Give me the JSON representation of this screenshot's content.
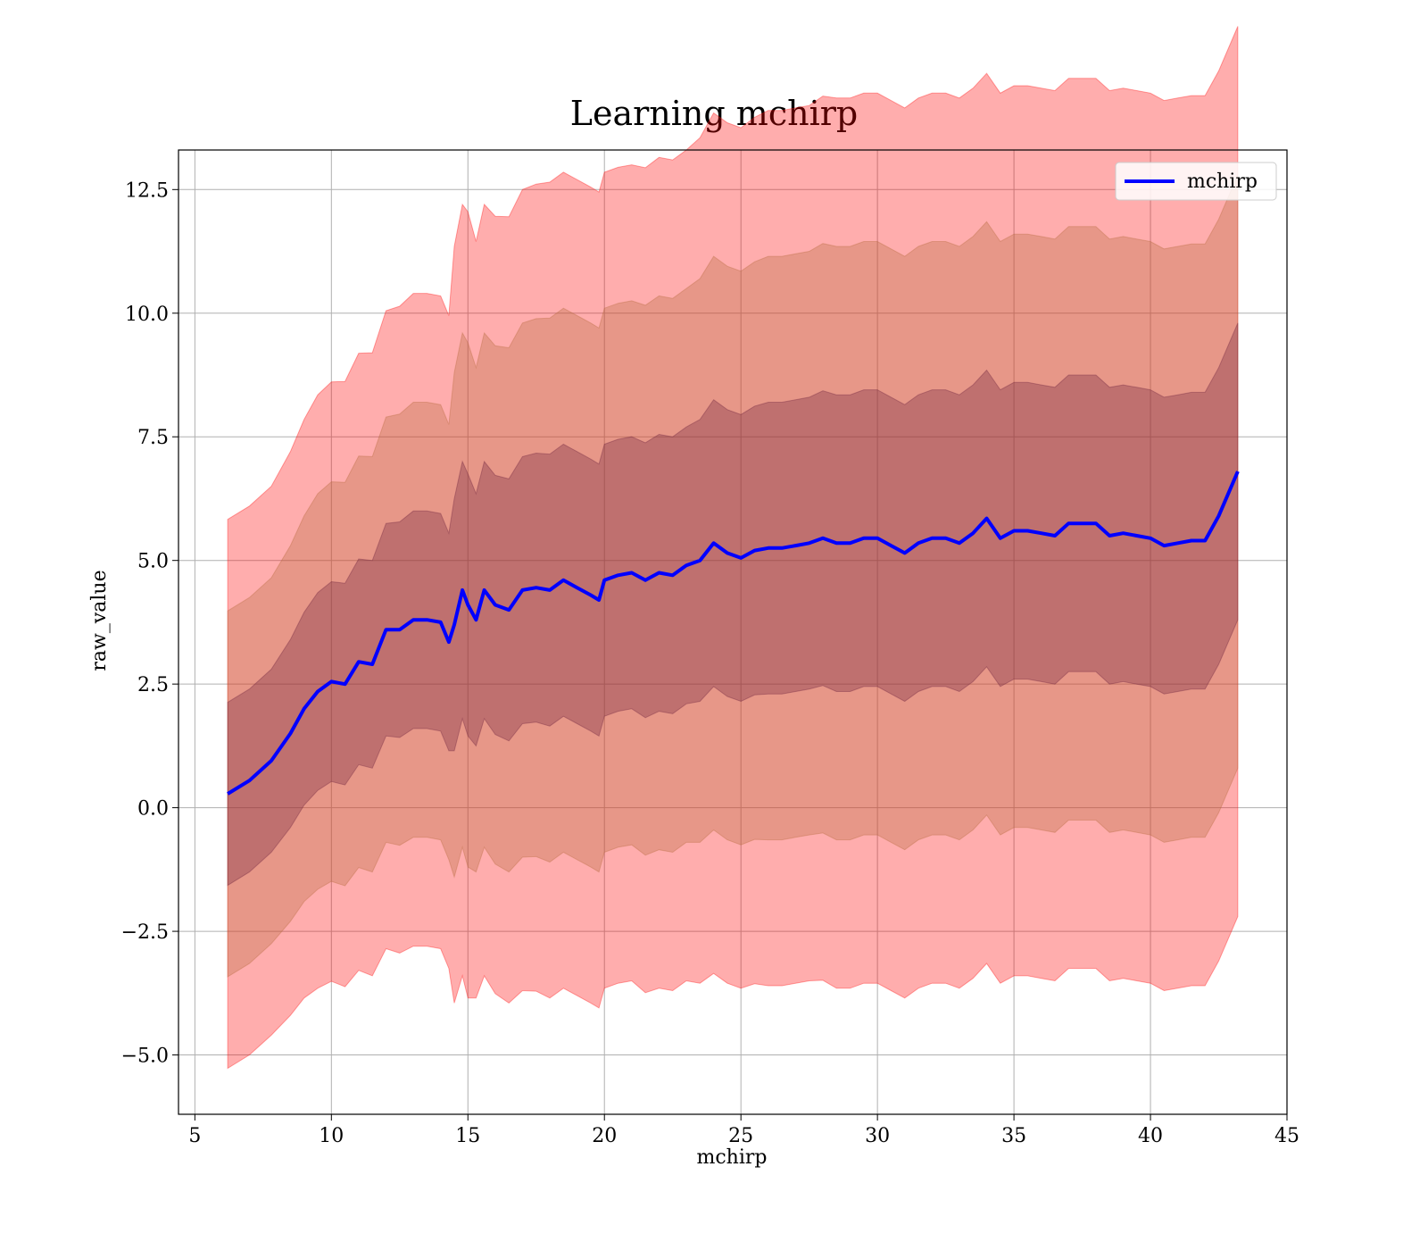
{
  "chart_data": {
    "type": "area",
    "title": "Learning mchirp",
    "xlabel": "mchirp",
    "ylabel": "raw_value",
    "xlim": [
      4.4,
      45
    ],
    "ylim": [
      -6.2,
      13.3
    ],
    "x_ticks": [
      5,
      10,
      15,
      20,
      25,
      30,
      35,
      40,
      45
    ],
    "x_tick_labels": [
      "5",
      "10",
      "15",
      "20",
      "25",
      "30",
      "35",
      "40",
      "45"
    ],
    "y_ticks": [
      -5.0,
      -2.5,
      0.0,
      2.5,
      5.0,
      7.5,
      10.0,
      12.5
    ],
    "y_tick_labels": [
      "−5.0",
      "−2.5",
      "0.0",
      "2.5",
      "5.0",
      "7.5",
      "10.0",
      "12.5"
    ],
    "grid": true,
    "legend": {
      "position": "top-right",
      "entries": [
        {
          "name": "mchirp",
          "color": "#0000ff"
        }
      ]
    },
    "band_colors": {
      "three_sigma": "#ff0000",
      "two_sigma": "#b46a3c",
      "one_sigma": "#6b1f3c"
    },
    "band_opacity": 0.32,
    "line_color": "#0000ff",
    "x": [
      6.2,
      7.0,
      7.8,
      8.5,
      9.0,
      9.5,
      10.0,
      10.5,
      11.0,
      11.5,
      12.0,
      12.5,
      13.0,
      13.5,
      14.0,
      14.3,
      14.5,
      14.8,
      15.0,
      15.3,
      15.6,
      16.0,
      16.5,
      17.0,
      17.5,
      18.0,
      18.5,
      19.0,
      19.5,
      19.8,
      20.0,
      20.5,
      21.0,
      21.5,
      22.0,
      22.5,
      23.0,
      23.5,
      24.0,
      24.5,
      25.0,
      25.5,
      26.0,
      26.5,
      27.0,
      27.5,
      28.0,
      28.5,
      29.0,
      29.5,
      30.0,
      30.5,
      31.0,
      31.5,
      32.0,
      32.5,
      33.0,
      33.5,
      34.0,
      34.5,
      35.0,
      35.5,
      36.0,
      36.5,
      37.0,
      37.5,
      38.0,
      38.5,
      39.0,
      39.5,
      40.0,
      40.5,
      41.0,
      41.5,
      42.0,
      42.5,
      43.2
    ],
    "mean": [
      0.28,
      0.55,
      0.95,
      1.5,
      2.0,
      2.35,
      2.55,
      2.5,
      2.95,
      2.9,
      3.6,
      3.6,
      3.8,
      3.8,
      3.75,
      3.35,
      3.7,
      4.4,
      4.1,
      3.8,
      4.4,
      4.1,
      4.0,
      4.4,
      4.45,
      4.4,
      4.6,
      4.45,
      4.3,
      4.2,
      4.6,
      4.7,
      4.75,
      4.6,
      4.75,
      4.7,
      4.9,
      5.0,
      5.35,
      5.15,
      5.05,
      5.2,
      5.25,
      5.25,
      5.3,
      5.35,
      5.45,
      5.35,
      5.35,
      5.45,
      5.45,
      5.3,
      5.15,
      5.35,
      5.45,
      5.45,
      5.35,
      5.55,
      5.85,
      5.45,
      5.6,
      5.6,
      5.55,
      5.5,
      5.75,
      5.75,
      5.75,
      5.5,
      5.55,
      5.5,
      5.45,
      5.3,
      5.35,
      5.4,
      5.4,
      5.9,
      6.8
    ],
    "std": [
      1.85,
      1.85,
      1.85,
      1.9,
      1.95,
      2.0,
      2.02,
      2.04,
      2.08,
      2.1,
      2.15,
      2.18,
      2.2,
      2.2,
      2.2,
      2.2,
      2.55,
      2.6,
      2.65,
      2.55,
      2.6,
      2.62,
      2.65,
      2.7,
      2.72,
      2.75,
      2.75,
      2.75,
      2.75,
      2.75,
      2.75,
      2.75,
      2.75,
      2.78,
      2.8,
      2.8,
      2.8,
      2.85,
      2.9,
      2.9,
      2.9,
      2.92,
      2.95,
      2.95,
      2.95,
      2.95,
      2.98,
      3.0,
      3.0,
      3.0,
      3.0,
      3.0,
      3.0,
      3.0,
      3.0,
      3.0,
      3.0,
      3.0,
      3.0,
      3.0,
      3.0,
      3.0,
      3.0,
      3.0,
      3.0,
      3.0,
      3.0,
      3.0,
      3.0,
      3.0,
      3.0,
      3.0,
      3.0,
      3.0,
      3.0,
      3.0,
      3.0
    ]
  }
}
